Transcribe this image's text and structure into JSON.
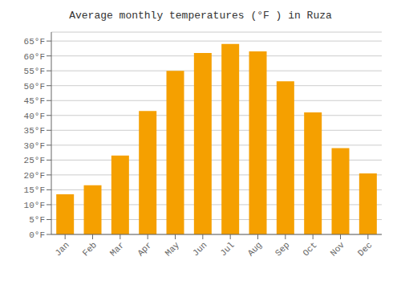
{
  "chart_data": {
    "type": "bar",
    "title": "Average monthly temperatures (°F ) in Ruza",
    "categories": [
      "Jan",
      "Feb",
      "Mar",
      "Apr",
      "May",
      "Jun",
      "Jul",
      "Aug",
      "Sep",
      "Oct",
      "Nov",
      "Dec"
    ],
    "values": [
      13.5,
      16.5,
      26.5,
      41.5,
      55.0,
      61.0,
      64.0,
      61.5,
      51.5,
      41.0,
      29.0,
      20.5
    ],
    "color": "#F5A000",
    "ylim": [
      0,
      68
    ],
    "yticks": [
      {
        "value": 0,
        "label": "0°F"
      },
      {
        "value": 5,
        "label": "5°F"
      },
      {
        "value": 10,
        "label": "10°F"
      },
      {
        "value": 15,
        "label": "15°F"
      },
      {
        "value": 20,
        "label": "20°F"
      },
      {
        "value": 25,
        "label": "25°F"
      },
      {
        "value": 30,
        "label": "30°F"
      },
      {
        "value": 35,
        "label": "35°F"
      },
      {
        "value": 40,
        "label": "40°F"
      },
      {
        "value": 45,
        "label": "45°F"
      },
      {
        "value": 50,
        "label": "50°F"
      },
      {
        "value": 55,
        "label": "55°F"
      },
      {
        "value": 60,
        "label": "60°F"
      },
      {
        "value": 65,
        "label": "65°F"
      }
    ],
    "grid": true
  }
}
